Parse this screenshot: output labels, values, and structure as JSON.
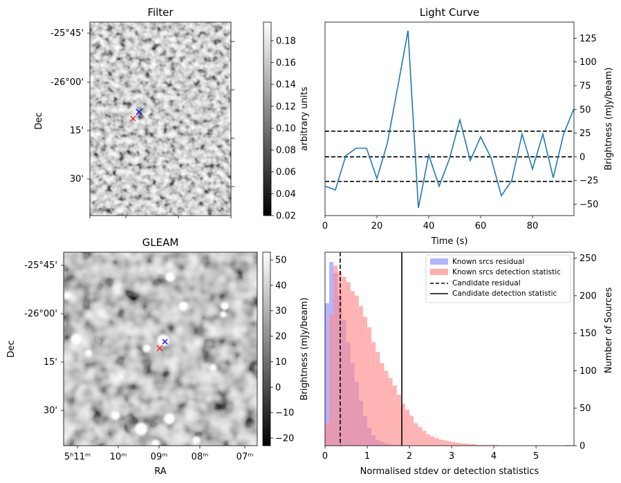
{
  "colors": {
    "line": "#1f77b4",
    "blue_hist": "#7777ff",
    "red_hist": "#ff8a8a",
    "blue_x": "#0000ff",
    "red_x": "#ff0000"
  },
  "chart_data": [
    {
      "type": "image",
      "title": "Filter",
      "ylabel": "Dec",
      "ytick_labels": [
        "-25°45'",
        "-26°00'",
        "15'",
        "30'"
      ],
      "colorbar": {
        "label": "arbitrary units",
        "range": [
          0.02,
          0.197
        ],
        "ticks": [
          0.02,
          0.04,
          0.06,
          0.08,
          0.1,
          0.12,
          0.14,
          0.16,
          0.18
        ],
        "tick_labels": [
          "0.02",
          "0.04",
          "0.06",
          "0.08",
          "0.10",
          "0.12",
          "0.14",
          "0.16",
          "0.18"
        ]
      },
      "markers": [
        {
          "name": "candidate",
          "color": "blue",
          "symbol": "x"
        },
        {
          "name": "known-source",
          "color": "red",
          "symbol": "x"
        }
      ]
    },
    {
      "type": "line",
      "title": "Light Curve",
      "xlabel": "Time (s)",
      "ylabel": "Brightness (mJy/beam)",
      "xlim": [
        0,
        96
      ],
      "ylim": [
        -62,
        142
      ],
      "xticks": [
        0,
        20,
        40,
        60,
        80
      ],
      "xtick_labels": [
        "0",
        "20",
        "40",
        "60",
        "80"
      ],
      "yticks": [
        -50,
        -25,
        0,
        25,
        50,
        75,
        100,
        125
      ],
      "ytick_labels": [
        "−50",
        "−25",
        "0",
        "25",
        "50",
        "75",
        "100",
        "125"
      ],
      "x": [
        0,
        4,
        8,
        12,
        16,
        20,
        24,
        28,
        32,
        36,
        40,
        44,
        48,
        52,
        56,
        60,
        64,
        68,
        72,
        76,
        80,
        84,
        88,
        92,
        96
      ],
      "values": [
        -31,
        -35,
        1,
        9,
        9,
        -23,
        14,
        73,
        133,
        -54,
        2,
        -31,
        -2,
        39,
        -4,
        21,
        -1,
        -41,
        -25,
        24,
        -13,
        24,
        -22,
        24,
        51
      ],
      "hlines": [
        {
          "y": 27,
          "style": "dashed"
        },
        {
          "y": 0,
          "style": "dashed"
        },
        {
          "y": -26,
          "style": "dashed"
        }
      ]
    },
    {
      "type": "image",
      "title": "GLEAM",
      "xlabel": "RA",
      "ylabel": "Dec",
      "ytick_labels": [
        "-25°45'",
        "-26°00'",
        "15'",
        "30'"
      ],
      "xtick_labels": [
        "5ʰ11ᵐ",
        "10ᵐ",
        "09ᵐ",
        "08ᵐ",
        "07ᵐ"
      ],
      "colorbar": {
        "label": "Brightness (mJy/beam)",
        "range": [
          -23,
          53
        ],
        "ticks": [
          -20,
          -10,
          0,
          10,
          20,
          30,
          40,
          50
        ],
        "tick_labels": [
          "−20",
          "−10",
          "0",
          "10",
          "20",
          "30",
          "40",
          "50"
        ]
      },
      "markers": [
        {
          "name": "candidate",
          "color": "blue",
          "symbol": "x"
        },
        {
          "name": "known-source",
          "color": "red",
          "symbol": "x"
        }
      ]
    },
    {
      "type": "histogram",
      "xlabel": "Normalised stdev or detection statistics",
      "ylabel_left": "Brightness (mJy/beam)",
      "ylabel": "Number of Sources",
      "xlim": [
        0,
        5.9
      ],
      "ylim": [
        0,
        258
      ],
      "xticks": [
        0,
        1,
        2,
        3,
        4,
        5
      ],
      "xtick_labels": [
        "0",
        "1",
        "2",
        "3",
        "4",
        "5"
      ],
      "yticks": [
        0,
        50,
        100,
        150,
        200,
        250
      ],
      "ytick_labels": [
        "0",
        "50",
        "100",
        "150",
        "200",
        "250"
      ],
      "bin_width": 0.1,
      "series": [
        {
          "name": "Known srcs residual",
          "bin_start": 0.0,
          "values": [
            190,
            245,
            230,
            200,
            168,
            138,
            110,
            85,
            60,
            40,
            24,
            14,
            8,
            5,
            3,
            2,
            1,
            1
          ]
        },
        {
          "name": "Known srcs detection statistic",
          "bin_start": 0.0,
          "values": [
            30,
            175,
            240,
            232,
            225,
            218,
            206,
            200,
            186,
            172,
            158,
            138,
            125,
            110,
            100,
            90,
            80,
            68,
            56,
            48,
            40,
            30,
            25,
            20,
            15,
            12,
            10,
            8,
            7,
            6,
            5,
            4,
            3,
            3,
            2,
            2,
            1,
            1,
            1,
            1,
            1,
            0,
            0,
            0,
            0,
            0,
            0,
            0,
            0,
            0,
            0,
            0,
            0,
            0,
            0,
            0,
            0,
            1
          ]
        }
      ],
      "vlines": [
        {
          "name": "Candidate residual",
          "x": 0.36,
          "style": "dashed"
        },
        {
          "name": "Candidate detection statistic",
          "x": 1.82,
          "style": "solid"
        }
      ],
      "legend": [
        "Known srcs residual",
        "Known srcs detection statistic",
        "Candidate residual",
        "Candidate detection statistic"
      ],
      "legend_position": "top-right"
    }
  ]
}
